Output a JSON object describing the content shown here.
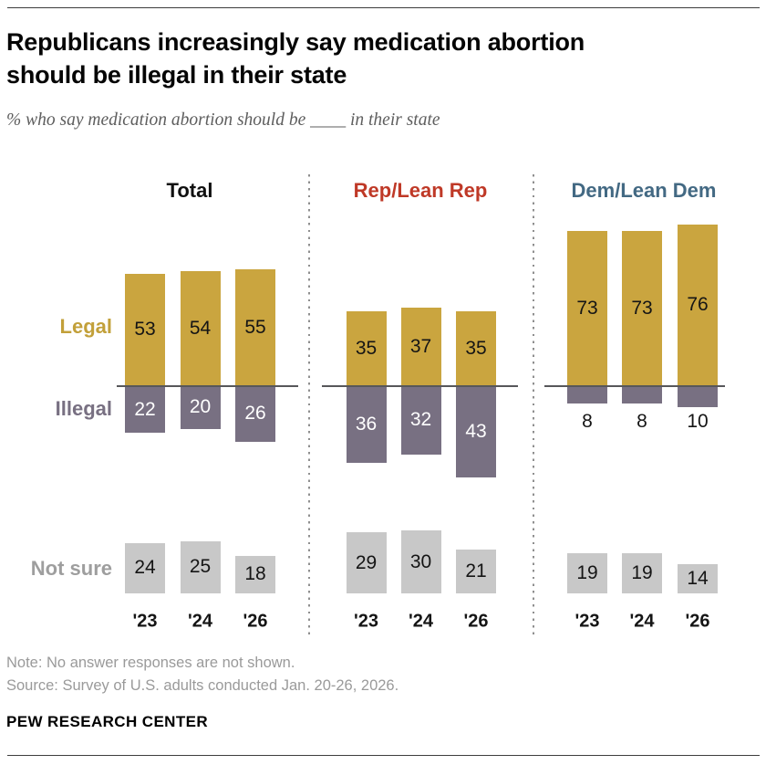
{
  "header": {
    "title_line1": "Republicans increasingly say medication abortion",
    "title_line2": "should be illegal in their state",
    "subtitle": "% who say medication abortion should be ____ in their state"
  },
  "chart_data": {
    "type": "bar",
    "title": "Republicans increasingly say medication abortion should be illegal in their state",
    "subtitle": "% who say medication abortion should be ____ in their state",
    "unit": "%",
    "categories": [
      "'23",
      "'24",
      "'26"
    ],
    "row_labels": {
      "legal": "Legal",
      "illegal": "Illegal",
      "not_sure": "Not sure"
    },
    "panels": [
      {
        "label": "Total",
        "header_color": "#101010",
        "legal": [
          53,
          54,
          55
        ],
        "illegal": [
          22,
          20,
          26
        ],
        "not_sure": [
          24,
          25,
          18
        ]
      },
      {
        "label": "Rep/Lean Rep",
        "header_color": "#bf3927",
        "legal": [
          35,
          37,
          35
        ],
        "illegal": [
          36,
          32,
          43
        ],
        "not_sure": [
          29,
          30,
          21
        ]
      },
      {
        "label": "Dem/Lean Dem",
        "header_color": "#436983",
        "legal": [
          73,
          73,
          76
        ],
        "illegal": [
          8,
          8,
          10
        ],
        "not_sure": [
          19,
          19,
          14
        ]
      }
    ],
    "colors": {
      "legal": "#caa53f",
      "illegal": "#787082",
      "not_sure": "#c8c8c8",
      "legal_label": "#c2a03a",
      "illegal_label": "#787082",
      "not_sure_label": "#9e9e9e"
    },
    "layout_hints": {
      "orientation": "diverging-columns",
      "legend_position": "left-row-labels",
      "grid": false,
      "small_illegal_values_labeled_below": true
    }
  },
  "footer": {
    "note": "Note: No answer responses are not shown.",
    "source": "Source: Survey of U.S. adults conducted Jan. 20-26, 2026.",
    "brand": "PEW RESEARCH CENTER"
  }
}
